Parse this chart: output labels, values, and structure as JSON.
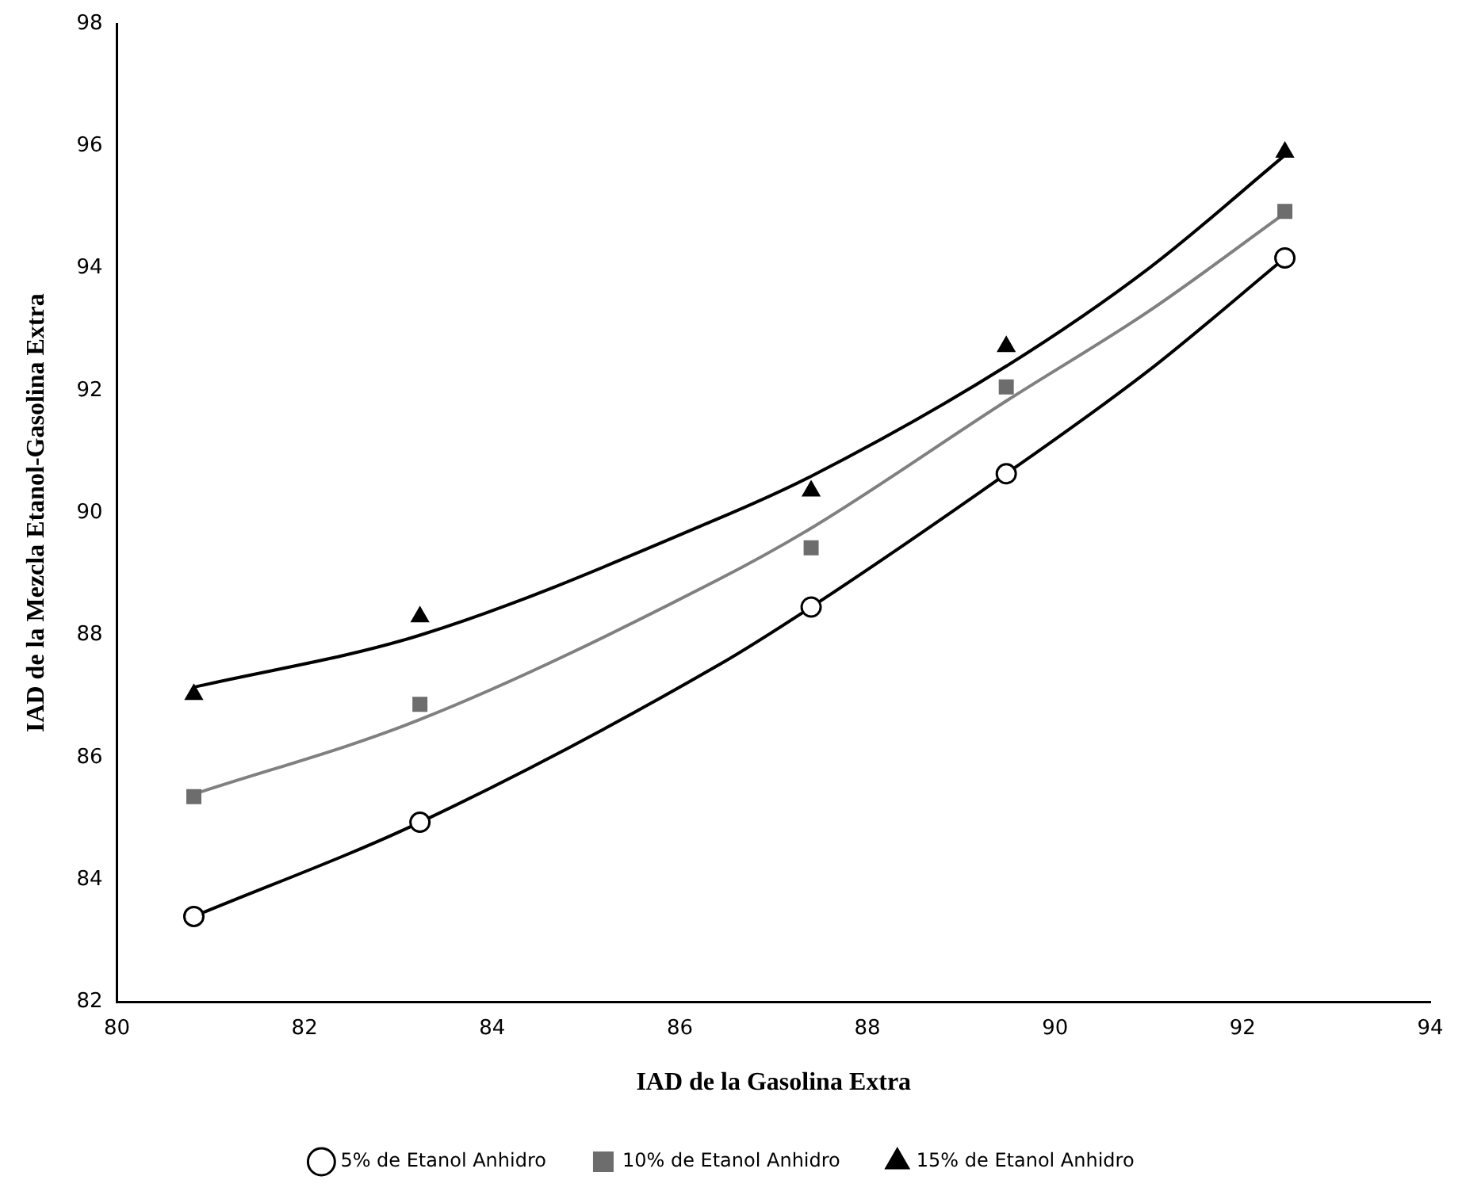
{
  "chart_data": {
    "type": "scatter",
    "xlabel": "IAD de la Gasolina Extra",
    "ylabel": "IAD de la Mezcla Etanol-Gasolina Extra",
    "xlim": [
      80,
      94
    ],
    "xticks": [
      80,
      82,
      84,
      86,
      88,
      90,
      92,
      94
    ],
    "ylim": [
      82,
      98
    ],
    "yticks": [
      82,
      84,
      86,
      88,
      90,
      92,
      94,
      96,
      98
    ],
    "grid": false,
    "legend": "bottom",
    "series": [
      {
        "name": "5% de Etanol Anhidro",
        "marker": "circle",
        "color": "#000000",
        "x": [
          80.82,
          83.23,
          87.4,
          89.48,
          92.45
        ],
        "values": [
          83.4,
          84.94,
          88.46,
          90.64,
          94.17
        ]
      },
      {
        "name": "10% de Etanol Anhidro",
        "marker": "square",
        "color": "#6d6d6d",
        "x": [
          80.82,
          83.23,
          87.4,
          89.48,
          92.45
        ],
        "values": [
          85.36,
          86.87,
          89.43,
          92.06,
          94.93
        ]
      },
      {
        "name": "15% de Etanol Anhidro",
        "marker": "triangle",
        "color": "#000000",
        "x": [
          80.82,
          83.23,
          87.4,
          89.48,
          92.45
        ],
        "values": [
          87.03,
          88.3,
          90.36,
          92.72,
          95.9
        ]
      },
      {
        "type": "line",
        "marker": "none",
        "color": "#000000",
        "x": [
          80.82,
          83.23,
          86.4,
          87.4,
          89.48,
          91,
          92.45
        ],
        "values": [
          83.4,
          84.94,
          87.5,
          88.46,
          90.64,
          92.33,
          94.17
        ]
      },
      {
        "type": "line",
        "marker": "none",
        "color": "#808080",
        "x": [
          80.82,
          83.23,
          86.4,
          87.4,
          89.48,
          91,
          92.45
        ],
        "values": [
          85.4,
          86.62,
          88.9,
          89.75,
          91.83,
          93.3,
          94.9
        ]
      },
      {
        "type": "line",
        "marker": "none",
        "color": "#000000",
        "x": [
          80.82,
          83.23,
          86.4,
          87.4,
          89.48,
          91,
          92.45
        ],
        "values": [
          87.15,
          88.0,
          89.9,
          90.6,
          92.4,
          94.0,
          95.85
        ]
      }
    ]
  }
}
